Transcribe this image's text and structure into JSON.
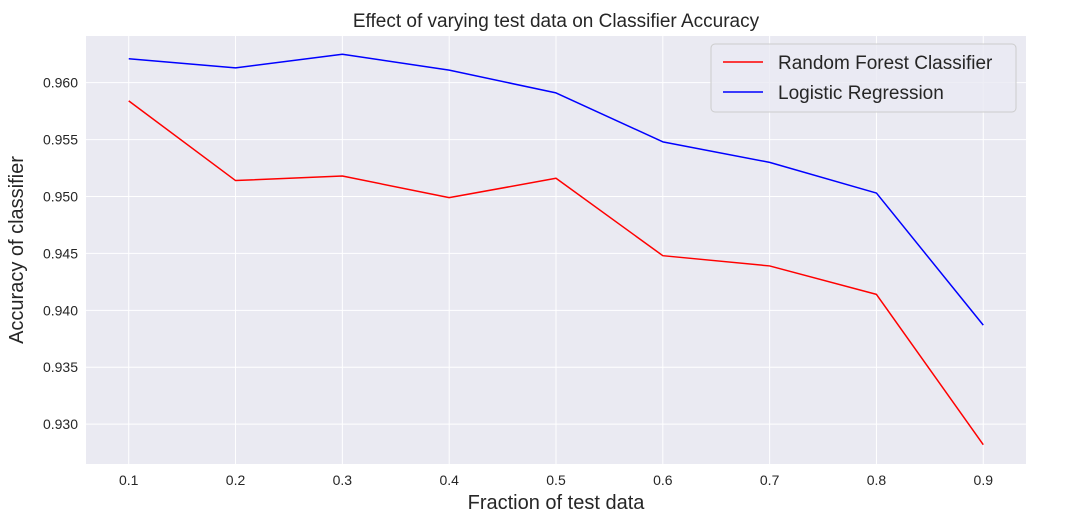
{
  "chart_data": {
    "type": "line",
    "title": "Effect of varying test data on Classifier Accuracy",
    "xlabel": "Fraction of test data",
    "ylabel": "Accuracy of classifier",
    "x": [
      0.1,
      0.2,
      0.3,
      0.4,
      0.5,
      0.6,
      0.7,
      0.8,
      0.9
    ],
    "x_tick_labels": [
      "0.1",
      "0.2",
      "0.3",
      "0.4",
      "0.5",
      "0.6",
      "0.7",
      "0.8",
      "0.9"
    ],
    "y_ticks": [
      0.93,
      0.935,
      0.94,
      0.945,
      0.95,
      0.955,
      0.96
    ],
    "y_tick_labels": [
      "0.930",
      "0.935",
      "0.940",
      "0.945",
      "0.950",
      "0.955",
      "0.960"
    ],
    "xlim": [
      0.06,
      0.94
    ],
    "ylim": [
      0.9265,
      0.9641
    ],
    "grid": true,
    "legend_position": "upper right",
    "background_color": "#eaeaf2",
    "grid_color": "#ffffff",
    "series": [
      {
        "name": "Random Forest Classifier",
        "color": "#ff0000",
        "values": [
          0.9584,
          0.9514,
          0.9518,
          0.9499,
          0.9516,
          0.9448,
          0.9439,
          0.9414,
          0.9282
        ]
      },
      {
        "name": "Logistic Regression",
        "color": "#0000ff",
        "values": [
          0.9621,
          0.9613,
          0.9625,
          0.9611,
          0.9591,
          0.9548,
          0.953,
          0.9503,
          0.9387
        ]
      }
    ]
  }
}
